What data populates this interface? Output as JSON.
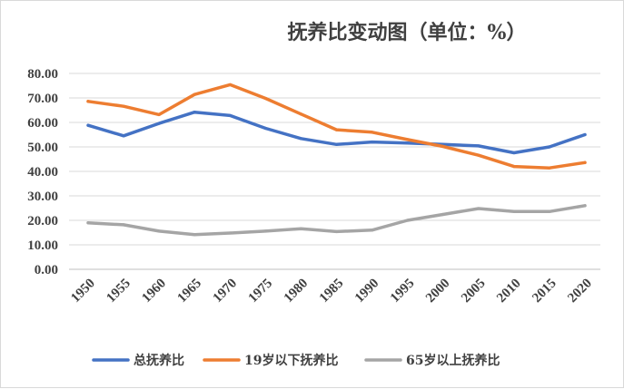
{
  "chart_data": {
    "type": "line",
    "title": "抚养比变动图（单位：%）",
    "xlabel": "",
    "ylabel": "",
    "ylim": [
      0,
      80
    ],
    "yticks": [
      "0.00",
      "10.00",
      "20.00",
      "30.00",
      "40.00",
      "50.00",
      "60.00",
      "70.00",
      "80.00"
    ],
    "x": [
      "1950",
      "1955",
      "1960",
      "1965",
      "1970",
      "1975",
      "1980",
      "1985",
      "1990",
      "1995",
      "2000",
      "2005",
      "2010",
      "2015",
      "2020"
    ],
    "grid": true,
    "legend_position": "bottom",
    "series": [
      {
        "name": "总抚养比",
        "color": "#4472c4",
        "values": [
          58.8,
          54.5,
          59.6,
          64.2,
          62.8,
          57.6,
          53.4,
          51.0,
          52.0,
          51.6,
          51.0,
          50.4,
          47.6,
          50.0,
          55.0
        ]
      },
      {
        "name": "19岁以下抚养比",
        "color": "#ed7d31",
        "values": [
          68.6,
          66.6,
          63.2,
          71.4,
          75.4,
          69.8,
          63.4,
          57.0,
          56.0,
          53.0,
          50.2,
          46.6,
          42.0,
          41.4,
          43.6
        ]
      },
      {
        "name": "65岁以上抚养比",
        "color": "#a5a5a5",
        "values": [
          19.0,
          18.2,
          15.6,
          14.2,
          14.8,
          15.6,
          16.6,
          15.4,
          16.0,
          20.0,
          22.4,
          24.8,
          23.6,
          23.6,
          26.0
        ]
      }
    ]
  }
}
